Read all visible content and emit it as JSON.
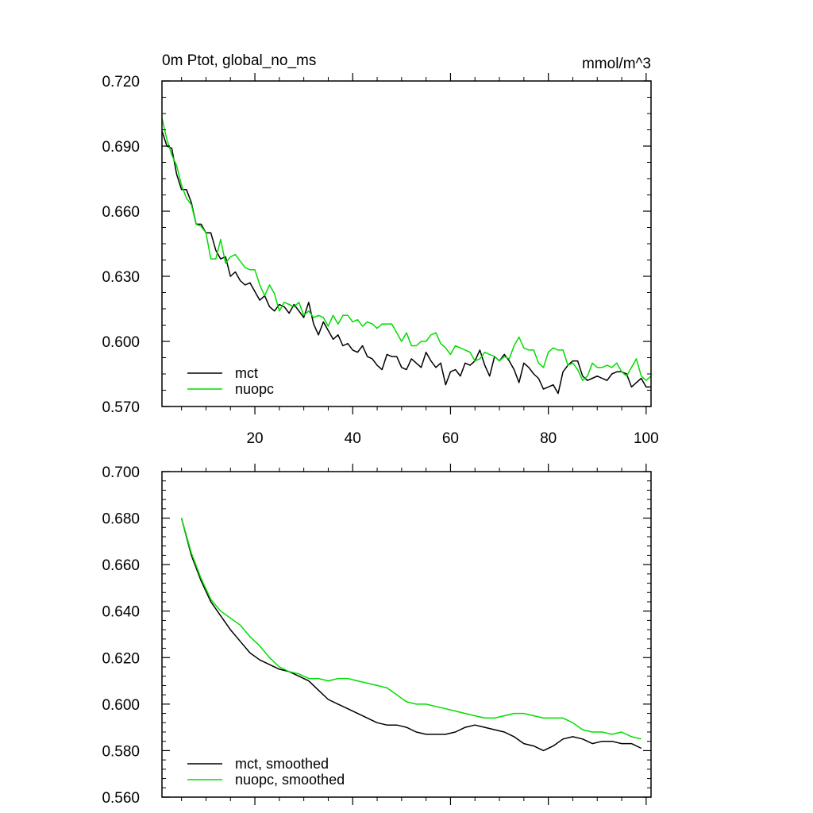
{
  "chart_data": [
    {
      "type": "line",
      "title": "0m Ptot, global_no_ms",
      "units": "mmol/m^3",
      "xlabel": "",
      "ylabel": "",
      "xlim": [
        1,
        101
      ],
      "ylim": [
        0.57,
        0.72
      ],
      "yticks": [
        0.57,
        0.6,
        0.63,
        0.66,
        0.69,
        0.72
      ],
      "ytick_labels": [
        "0.570",
        "0.600",
        "0.630",
        "0.660",
        "0.690",
        "0.720"
      ],
      "xticks": [
        20,
        40,
        60,
        80,
        100
      ],
      "xtick_labels": [
        "20",
        "40",
        "60",
        "80",
        "100"
      ],
      "legend_position": "bottom-left",
      "series": [
        {
          "name": "mct",
          "color": "#000000",
          "x": [
            1,
            2,
            3,
            4,
            5,
            6,
            7,
            8,
            9,
            10,
            11,
            12,
            13,
            14,
            15,
            16,
            17,
            18,
            19,
            20,
            21,
            22,
            23,
            24,
            25,
            26,
            27,
            28,
            29,
            30,
            31,
            32,
            33,
            34,
            35,
            36,
            37,
            38,
            39,
            40,
            41,
            42,
            43,
            44,
            45,
            46,
            47,
            48,
            49,
            50,
            51,
            52,
            53,
            54,
            55,
            56,
            57,
            58,
            59,
            60,
            61,
            62,
            63,
            64,
            65,
            66,
            67,
            68,
            69,
            70,
            71,
            72,
            73,
            74,
            75,
            76,
            77,
            78,
            79,
            80,
            81,
            82,
            83,
            84,
            85,
            86,
            87,
            88,
            89,
            90,
            91,
            92,
            93,
            94,
            95,
            96,
            97,
            98,
            99,
            100,
            101
          ],
          "values": [
            0.697,
            0.69,
            0.689,
            0.677,
            0.67,
            0.67,
            0.664,
            0.654,
            0.654,
            0.65,
            0.65,
            0.642,
            0.638,
            0.639,
            0.63,
            0.632,
            0.628,
            0.626,
            0.627,
            0.623,
            0.619,
            0.621,
            0.616,
            0.614,
            0.617,
            0.616,
            0.613,
            0.617,
            0.614,
            0.611,
            0.618,
            0.608,
            0.603,
            0.609,
            0.605,
            0.601,
            0.603,
            0.598,
            0.599,
            0.596,
            0.595,
            0.598,
            0.593,
            0.592,
            0.589,
            0.587,
            0.594,
            0.593,
            0.593,
            0.588,
            0.587,
            0.592,
            0.59,
            0.588,
            0.595,
            0.591,
            0.588,
            0.59,
            0.58,
            0.586,
            0.587,
            0.584,
            0.59,
            0.589,
            0.591,
            0.596,
            0.589,
            0.584,
            0.593,
            0.591,
            0.594,
            0.591,
            0.587,
            0.581,
            0.59,
            0.588,
            0.585,
            0.583,
            0.578,
            0.579,
            0.58,
            0.576,
            0.586,
            0.589,
            0.591,
            0.591,
            0.584,
            0.582,
            0.583,
            0.584,
            0.583,
            0.582,
            0.585,
            0.586,
            0.586,
            0.585,
            0.579,
            0.581,
            0.583,
            0.579,
            0.579
          ]
        },
        {
          "name": "nuopc",
          "color": "#00dd00",
          "x": [
            1,
            2,
            3,
            4,
            5,
            6,
            7,
            8,
            9,
            10,
            11,
            12,
            13,
            14,
            15,
            16,
            17,
            18,
            19,
            20,
            21,
            22,
            23,
            24,
            25,
            26,
            27,
            28,
            29,
            30,
            31,
            32,
            33,
            34,
            35,
            36,
            37,
            38,
            39,
            40,
            41,
            42,
            43,
            44,
            45,
            46,
            47,
            48,
            49,
            50,
            51,
            52,
            53,
            54,
            55,
            56,
            57,
            58,
            59,
            60,
            61,
            62,
            63,
            64,
            65,
            66,
            67,
            68,
            69,
            70,
            71,
            72,
            73,
            74,
            75,
            76,
            77,
            78,
            79,
            80,
            81,
            82,
            83,
            84,
            85,
            86,
            87,
            88,
            89,
            90,
            91,
            92,
            93,
            94,
            95,
            96,
            97,
            98,
            99,
            100,
            101
          ],
          "values": [
            0.703,
            0.693,
            0.686,
            0.681,
            0.672,
            0.666,
            0.663,
            0.654,
            0.653,
            0.65,
            0.638,
            0.638,
            0.647,
            0.636,
            0.639,
            0.64,
            0.637,
            0.634,
            0.633,
            0.633,
            0.626,
            0.621,
            0.626,
            0.622,
            0.614,
            0.618,
            0.617,
            0.616,
            0.618,
            0.612,
            0.614,
            0.611,
            0.612,
            0.611,
            0.607,
            0.612,
            0.608,
            0.612,
            0.612,
            0.609,
            0.61,
            0.607,
            0.609,
            0.608,
            0.606,
            0.608,
            0.608,
            0.608,
            0.604,
            0.6,
            0.604,
            0.598,
            0.598,
            0.6,
            0.6,
            0.603,
            0.604,
            0.599,
            0.597,
            0.594,
            0.598,
            0.597,
            0.596,
            0.595,
            0.591,
            0.592,
            0.595,
            0.594,
            0.593,
            0.591,
            0.593,
            0.592,
            0.598,
            0.602,
            0.597,
            0.596,
            0.596,
            0.59,
            0.588,
            0.595,
            0.597,
            0.596,
            0.596,
            0.589,
            0.59,
            0.587,
            0.582,
            0.584,
            0.59,
            0.588,
            0.588,
            0.589,
            0.588,
            0.59,
            0.586,
            0.584,
            0.588,
            0.592,
            0.584,
            0.582,
            0.584
          ]
        }
      ]
    },
    {
      "type": "line",
      "title": "",
      "xlabel": "",
      "ylabel": "",
      "xlim": [
        1,
        101
      ],
      "ylim": [
        0.56,
        0.7
      ],
      "yticks": [
        0.56,
        0.58,
        0.6,
        0.62,
        0.64,
        0.66,
        0.68,
        0.7
      ],
      "ytick_labels": [
        "0.560",
        "0.580",
        "0.600",
        "0.620",
        "0.640",
        "0.660",
        "0.680",
        "0.700"
      ],
      "xticks": [
        20,
        40,
        60,
        80,
        100
      ],
      "legend_position": "bottom-left",
      "series": [
        {
          "name": "mct, smoothed",
          "color": "#000000",
          "x": [
            5,
            7,
            9,
            11,
            13,
            15,
            17,
            19,
            21,
            23,
            25,
            27,
            29,
            31,
            33,
            35,
            37,
            39,
            41,
            43,
            45,
            47,
            49,
            51,
            53,
            55,
            57,
            59,
            61,
            63,
            65,
            67,
            69,
            71,
            73,
            75,
            77,
            79,
            81,
            83,
            85,
            87,
            89,
            91,
            93,
            95,
            97,
            99
          ],
          "values": [
            0.68,
            0.664,
            0.653,
            0.644,
            0.638,
            0.632,
            0.627,
            0.622,
            0.619,
            0.617,
            0.615,
            0.614,
            0.612,
            0.61,
            0.606,
            0.602,
            0.6,
            0.598,
            0.596,
            0.594,
            0.592,
            0.591,
            0.591,
            0.59,
            0.588,
            0.587,
            0.587,
            0.587,
            0.588,
            0.59,
            0.591,
            0.59,
            0.589,
            0.588,
            0.586,
            0.583,
            0.582,
            0.58,
            0.582,
            0.585,
            0.586,
            0.585,
            0.583,
            0.584,
            0.584,
            0.583,
            0.583,
            0.581
          ]
        },
        {
          "name": "nuopc, smoothed",
          "color": "#00dd00",
          "x": [
            5,
            7,
            9,
            11,
            13,
            15,
            17,
            19,
            21,
            23,
            25,
            27,
            29,
            31,
            33,
            35,
            37,
            39,
            41,
            43,
            45,
            47,
            49,
            51,
            53,
            55,
            57,
            59,
            61,
            63,
            65,
            67,
            69,
            71,
            73,
            75,
            77,
            79,
            81,
            83,
            85,
            87,
            89,
            91,
            93,
            95,
            97,
            99
          ],
          "values": [
            0.68,
            0.665,
            0.654,
            0.645,
            0.64,
            0.637,
            0.634,
            0.629,
            0.625,
            0.62,
            0.616,
            0.614,
            0.613,
            0.611,
            0.611,
            0.61,
            0.611,
            0.611,
            0.61,
            0.609,
            0.608,
            0.607,
            0.604,
            0.601,
            0.6,
            0.6,
            0.599,
            0.598,
            0.597,
            0.596,
            0.595,
            0.594,
            0.594,
            0.595,
            0.596,
            0.596,
            0.595,
            0.594,
            0.594,
            0.594,
            0.592,
            0.589,
            0.588,
            0.588,
            0.587,
            0.588,
            0.586,
            0.585
          ]
        }
      ]
    }
  ]
}
